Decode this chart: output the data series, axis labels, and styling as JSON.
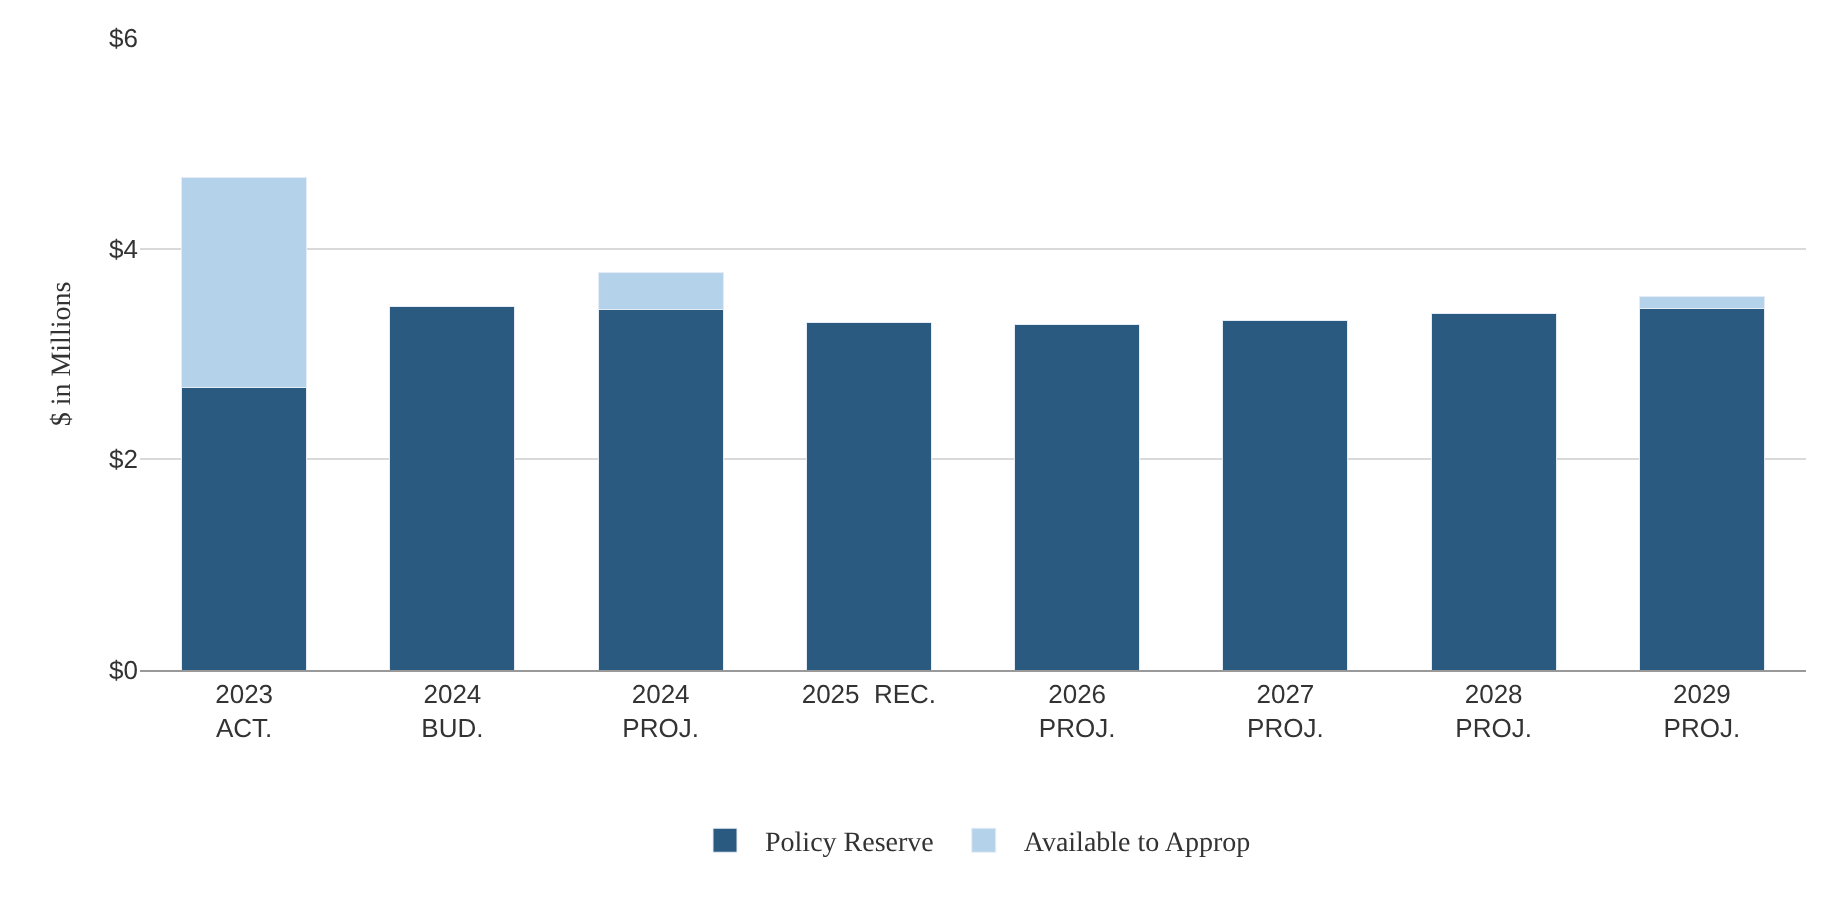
{
  "chart_data": {
    "type": "bar",
    "stacked": true,
    "ylabel": "$ in Millions",
    "categories": [
      "2023\nACT.",
      "2024\nBUD.",
      "2024\nPROJ.",
      "2025  REC.",
      "2026\nPROJ.",
      "2027\nPROJ.",
      "2028\nPROJ.",
      "2029\nPROJ."
    ],
    "series": [
      {
        "name": "Policy Reserve",
        "color": "#2b5a80",
        "values": [
          2.68,
          3.45,
          3.42,
          3.3,
          3.28,
          3.32,
          3.38,
          3.43
        ]
      },
      {
        "name": "Available to Approp",
        "color": "#b4d3ea",
        "values": [
          2.0,
          null,
          0.35,
          null,
          null,
          null,
          null,
          0.12
        ]
      }
    ],
    "ylim": [
      0,
      6
    ],
    "yticks": [
      {
        "value": 0,
        "label": "$0"
      },
      {
        "value": 2,
        "label": "$2"
      },
      {
        "value": 4,
        "label": "$4"
      },
      {
        "value": 6,
        "label": "$6"
      }
    ],
    "grid": "y",
    "legend": "bottom"
  }
}
